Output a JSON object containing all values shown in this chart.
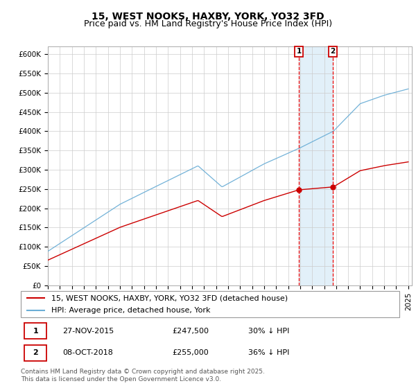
{
  "title": "15, WEST NOOKS, HAXBY, YORK, YO32 3FD",
  "subtitle": "Price paid vs. HM Land Registry's House Price Index (HPI)",
  "ylim": [
    0,
    620000
  ],
  "yticks": [
    0,
    50000,
    100000,
    150000,
    200000,
    250000,
    300000,
    350000,
    400000,
    450000,
    500000,
    550000,
    600000
  ],
  "ytick_labels": [
    "£0",
    "£50K",
    "£100K",
    "£150K",
    "£200K",
    "£250K",
    "£300K",
    "£350K",
    "£400K",
    "£450K",
    "£500K",
    "£550K",
    "£600K"
  ],
  "hpi_color": "#6baed6",
  "price_color": "#cc0000",
  "vline_color": "#ee0000",
  "shade_color": "#ddeef8",
  "sale1_date": "27-NOV-2015",
  "sale1_price": 247500,
  "sale1_hpi_pct": "30% ↓ HPI",
  "sale1_year": 2015.9,
  "sale2_date": "08-OCT-2018",
  "sale2_price": 255000,
  "sale2_hpi_pct": "36% ↓ HPI",
  "sale2_year": 2018.77,
  "legend_line1": "15, WEST NOOKS, HAXBY, YORK, YO32 3FD (detached house)",
  "legend_line2": "HPI: Average price, detached house, York",
  "footer": "Contains HM Land Registry data © Crown copyright and database right 2025.\nThis data is licensed under the Open Government Licence v3.0.",
  "title_fontsize": 10,
  "subtitle_fontsize": 9,
  "tick_fontsize": 7.5,
  "legend_fontsize": 8,
  "footer_fontsize": 6.5,
  "xstart": 1995,
  "xend": 2025
}
